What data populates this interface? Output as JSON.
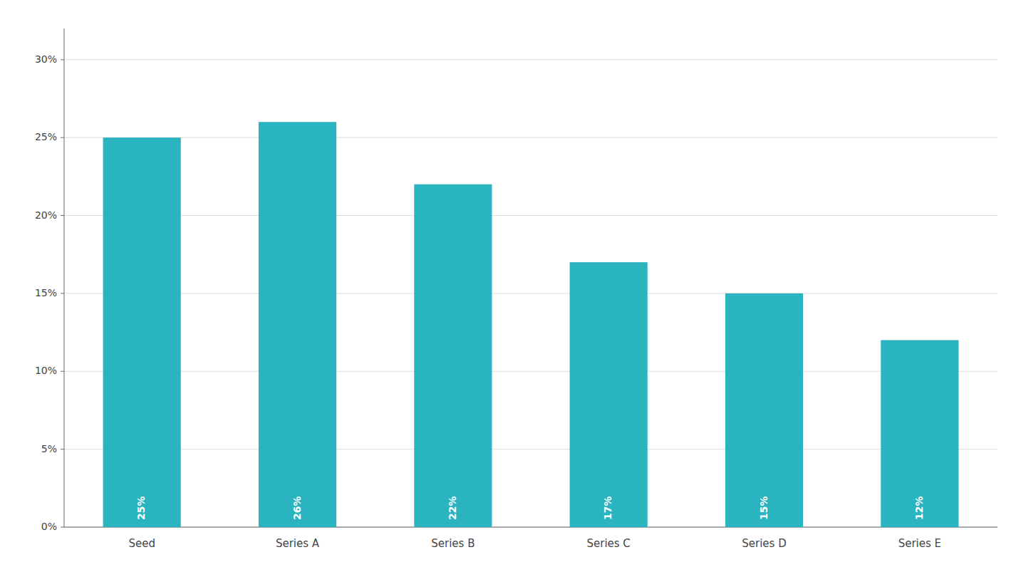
{
  "chart_data": {
    "type": "bar",
    "categories": [
      "Seed",
      "Series A",
      "Series B",
      "Series C",
      "Series D",
      "Series E"
    ],
    "values": [
      25,
      26,
      22,
      17,
      15,
      12
    ],
    "value_labels": [
      "25%",
      "26%",
      "22%",
      "17%",
      "15%",
      "12%"
    ],
    "color": "#2ab4c0",
    "ylim": [
      0,
      32
    ],
    "yticks": [
      {
        "value": 0,
        "label": "0%"
      },
      {
        "value": 5,
        "label": "5%"
      },
      {
        "value": 10,
        "label": "10%"
      },
      {
        "value": 15,
        "label": "15%"
      },
      {
        "value": 20,
        "label": "20%"
      },
      {
        "value": 25,
        "label": "25%"
      },
      {
        "value": 30,
        "label": "30%"
      }
    ],
    "grid": true
  }
}
